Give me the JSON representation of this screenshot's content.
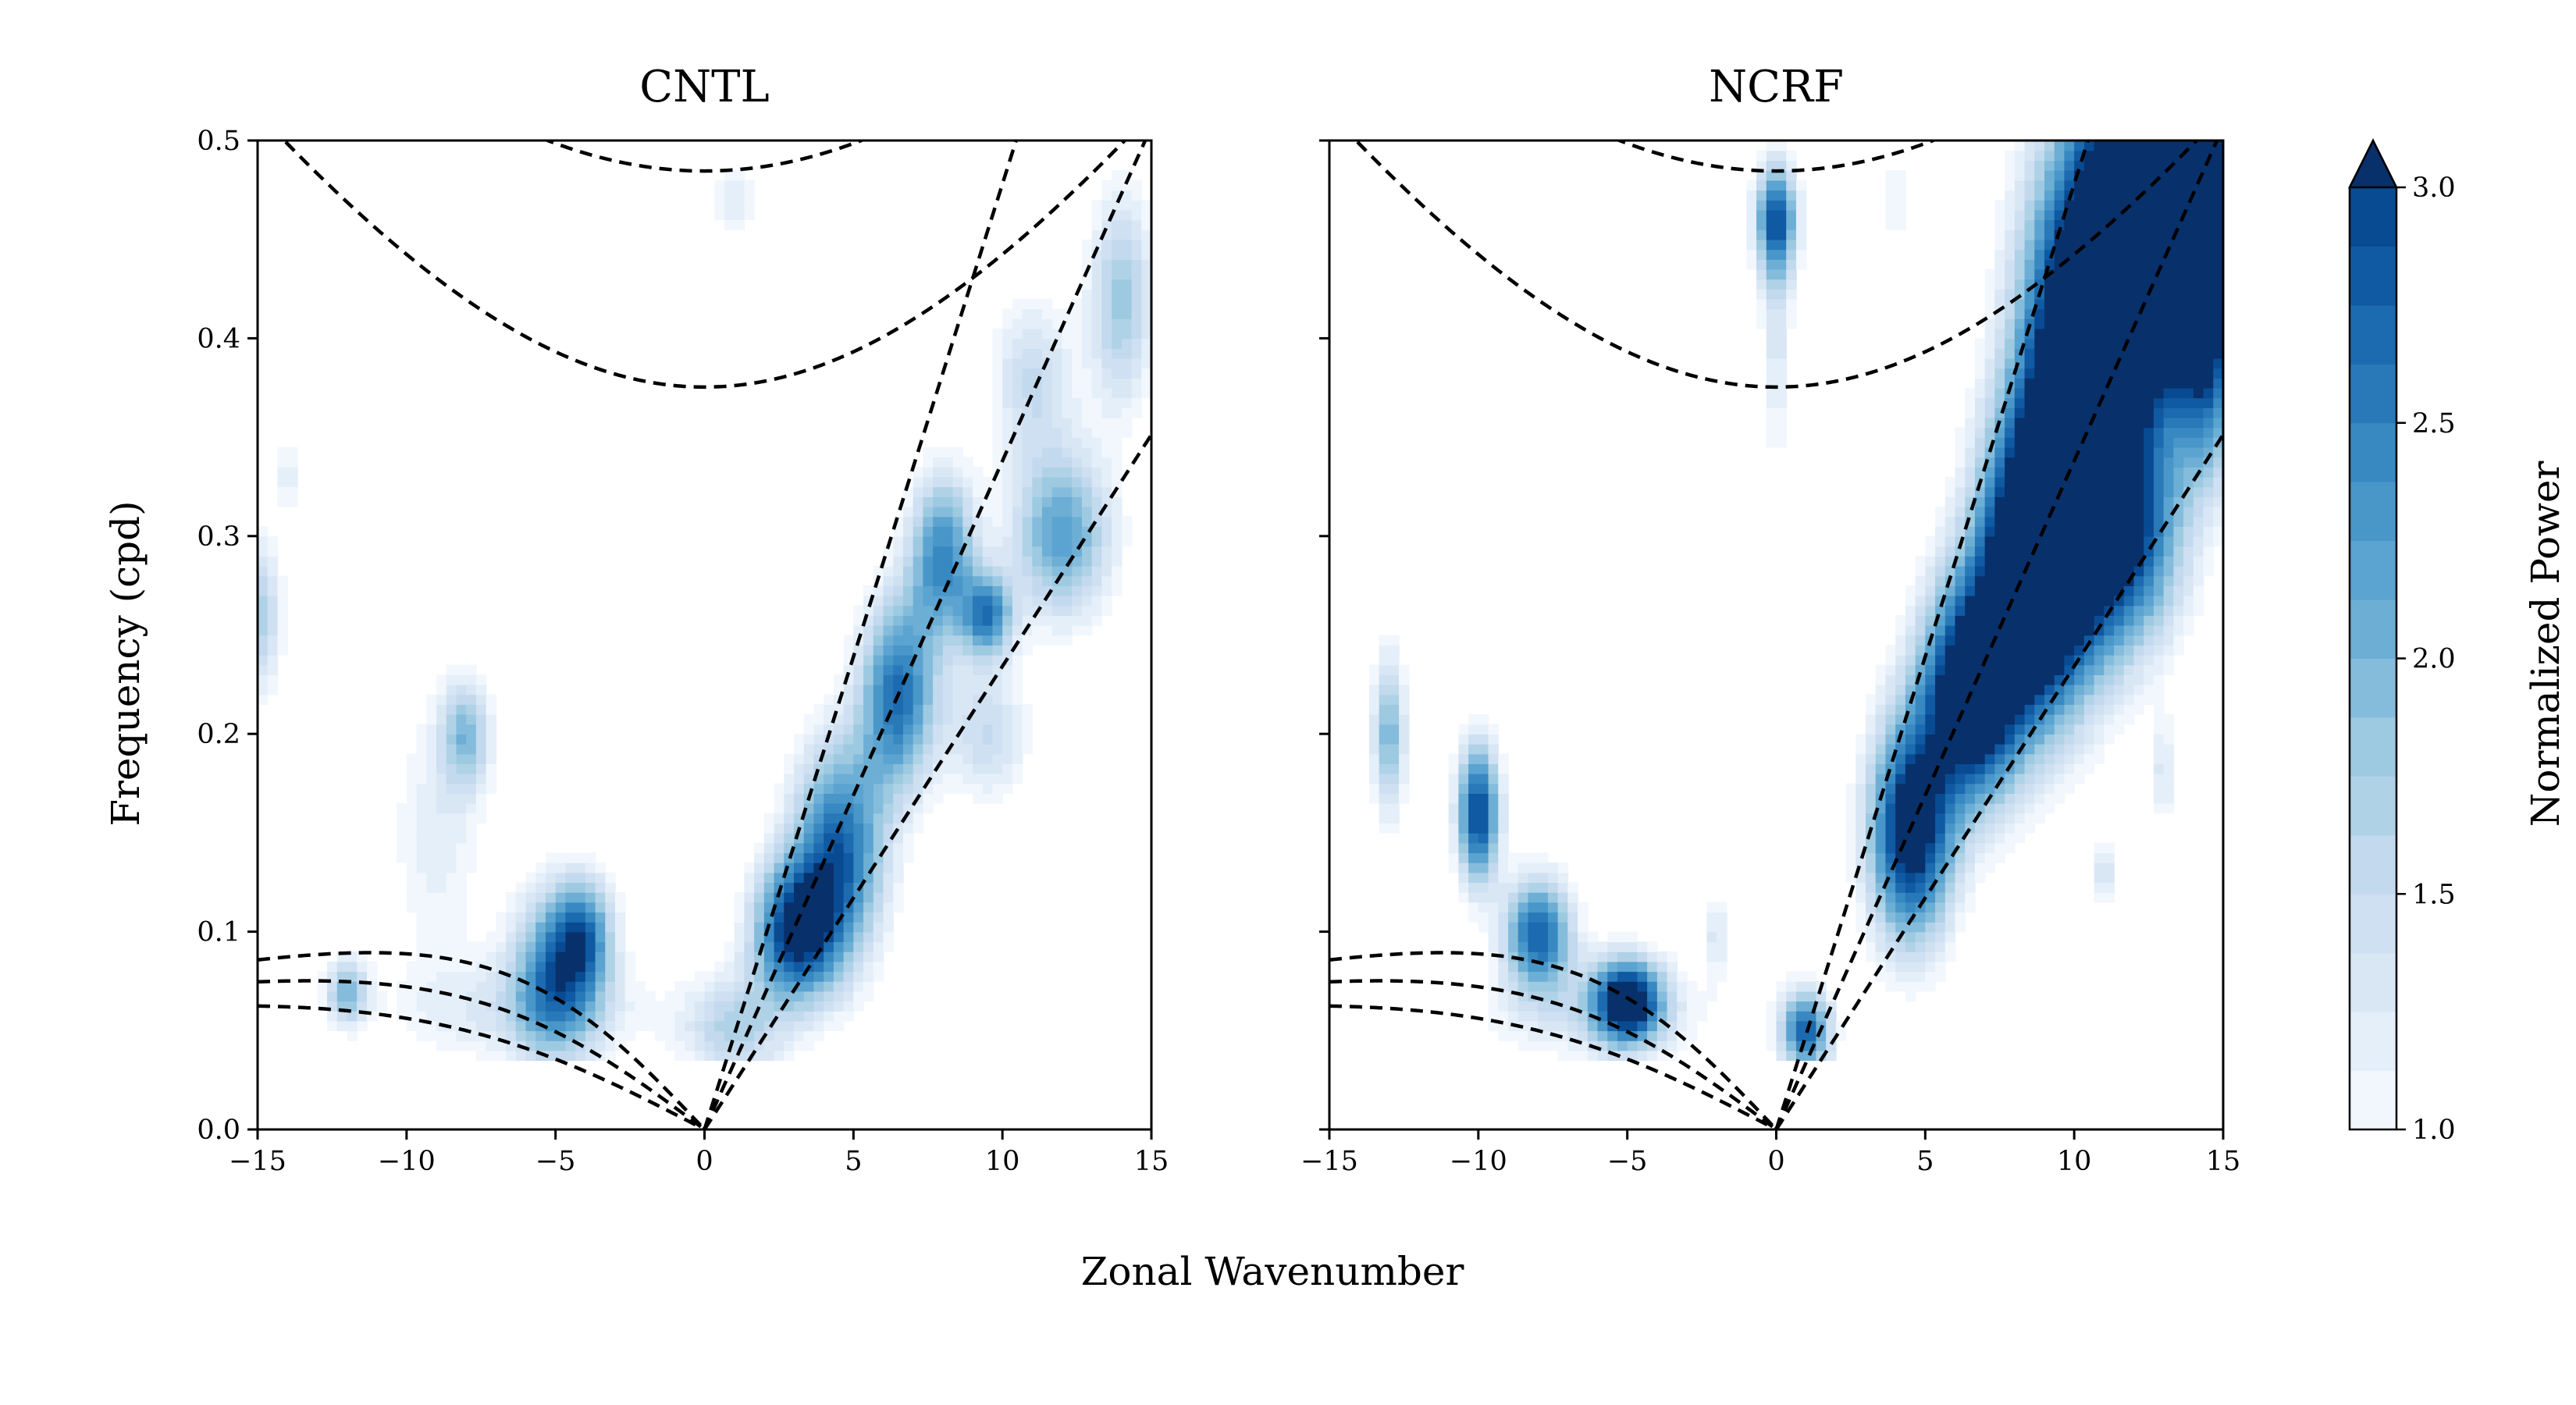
{
  "figure": {
    "xlabel": "Zonal Wavenumber",
    "ylabel": "Frequency (cpd)"
  },
  "colorbar": {
    "label": "Normalized Power",
    "min": 1.0,
    "max": 3.0,
    "levels": [
      1.0,
      1.125,
      1.25,
      1.375,
      1.5,
      1.625,
      1.75,
      1.875,
      2.0,
      2.125,
      2.25,
      2.375,
      2.5,
      2.625,
      2.75,
      2.875,
      3.0
    ],
    "ticks": [
      "1.0",
      "1.5",
      "2.0",
      "2.5",
      "3.0"
    ],
    "extend": "max",
    "colors": [
      "#f1f7fd",
      "#e5eff9",
      "#d9e7f5",
      "#cee0f2",
      "#c2d9ee",
      "#b0d2e7",
      "#9dcae1",
      "#85bcdc",
      "#6daed5",
      "#5ba3d0",
      "#4997c9",
      "#3888c1",
      "#2979b9",
      "#1c6aaf",
      "#0f5aa3",
      "#084b93",
      "#08306b"
    ]
  },
  "chart_data": [
    {
      "type": "contour",
      "title": "CNTL",
      "xlim": [
        -15,
        15
      ],
      "ylim": [
        0.0,
        0.5
      ],
      "xticks": [
        -15,
        -10,
        -5,
        0,
        5,
        10,
        15
      ],
      "yticks": [
        0.0,
        0.1,
        0.2,
        0.3,
        0.4,
        0.5
      ],
      "xtick_labels": [
        "−15",
        "−10",
        "−5",
        "0",
        "5",
        "10",
        "15"
      ],
      "ytick_labels": [
        "0.0",
        "0.1",
        "0.2",
        "0.3",
        "0.4",
        "0.5"
      ],
      "blobs": [
        {
          "k": 3,
          "f": 0.1,
          "sk": 1.0,
          "sf": 0.025,
          "a": 2.2
        },
        {
          "k": 4.5,
          "f": 0.14,
          "sk": 1.1,
          "sf": 0.04,
          "a": 2.0
        },
        {
          "k": 6.5,
          "f": 0.22,
          "sk": 0.9,
          "sf": 0.035,
          "a": 1.9
        },
        {
          "k": 8,
          "f": 0.29,
          "sk": 0.8,
          "sf": 0.03,
          "a": 1.7
        },
        {
          "k": 9.5,
          "f": 0.26,
          "sk": 0.6,
          "sf": 0.015,
          "a": 1.7
        },
        {
          "k": 12,
          "f": 0.3,
          "sk": 1.2,
          "sf": 0.03,
          "a": 1.5
        },
        {
          "k": 14,
          "f": 0.42,
          "sk": 0.8,
          "sf": 0.04,
          "a": 1.1
        },
        {
          "k": 9.5,
          "f": 0.2,
          "sk": 1.0,
          "sf": 0.025,
          "a": 0.8
        },
        {
          "k": 1,
          "f": 0.05,
          "sk": 1.2,
          "sf": 0.02,
          "a": 0.9
        },
        {
          "k": -5,
          "f": 0.08,
          "sk": 1.0,
          "sf": 0.03,
          "a": 1.7
        },
        {
          "k": -4,
          "f": 0.1,
          "sk": 0.7,
          "sf": 0.02,
          "a": 1.3
        },
        {
          "k": -12,
          "f": 0.07,
          "sk": 0.5,
          "sf": 0.012,
          "a": 1.2
        },
        {
          "k": -8,
          "f": 0.2,
          "sk": 0.6,
          "sf": 0.02,
          "a": 1.1
        },
        {
          "k": -9,
          "f": 0.15,
          "sk": 1.2,
          "sf": 0.05,
          "a": 0.5
        },
        {
          "k": -15,
          "f": 0.26,
          "sk": 0.6,
          "sf": 0.03,
          "a": 1.0
        },
        {
          "k": -6,
          "f": 0.06,
          "sk": 3.5,
          "sf": 0.02,
          "a": 0.55
        },
        {
          "k": 1,
          "f": 0.47,
          "sk": 0.6,
          "sf": 0.012,
          "a": 0.55
        },
        {
          "k": -14,
          "f": 0.33,
          "sk": 0.3,
          "sf": 0.015,
          "a": 0.5
        },
        {
          "k": 11,
          "f": 0.38,
          "sk": 1.0,
          "sf": 0.03,
          "a": 0.8
        }
      ],
      "fmin": 0.035
    },
    {
      "type": "contour",
      "title": "NCRF",
      "xlim": [
        -15,
        15
      ],
      "ylim": [
        0.0,
        0.5
      ],
      "xticks": [
        -15,
        -10,
        -5,
        0,
        5,
        10,
        15
      ],
      "yticks": [
        0.0,
        0.1,
        0.2,
        0.3,
        0.4,
        0.5
      ],
      "xtick_labels": [
        "−15",
        "−10",
        "−5",
        "0",
        "5",
        "10",
        "15"
      ],
      "ytick_labels": [
        "",
        "",
        "",
        "",
        "",
        ""
      ],
      "blobs": [
        {
          "k": 4.5,
          "f": 0.15,
          "sk": 1.0,
          "sf": 0.04,
          "a": 2.6
        },
        {
          "k": 6.5,
          "f": 0.22,
          "sk": 1.2,
          "sf": 0.04,
          "a": 2.8
        },
        {
          "k": 8.5,
          "f": 0.28,
          "sk": 1.3,
          "sf": 0.05,
          "a": 3.0
        },
        {
          "k": 10,
          "f": 0.35,
          "sk": 1.4,
          "sf": 0.07,
          "a": 3.2
        },
        {
          "k": 12,
          "f": 0.45,
          "sk": 1.8,
          "sf": 0.06,
          "a": 3.4
        },
        {
          "k": 14,
          "f": 0.48,
          "sk": 1.5,
          "sf": 0.05,
          "a": 3.2
        },
        {
          "k": 12,
          "f": 0.3,
          "sk": 1.3,
          "sf": 0.04,
          "a": 1.6
        },
        {
          "k": 14.5,
          "f": 0.38,
          "sk": 0.8,
          "sf": 0.04,
          "a": 1.3
        },
        {
          "k": 1,
          "f": 0.05,
          "sk": 0.6,
          "sf": 0.015,
          "a": 2.0
        },
        {
          "k": -5,
          "f": 0.065,
          "sk": 0.8,
          "sf": 0.015,
          "a": 2.5
        },
        {
          "k": -8,
          "f": 0.1,
          "sk": 0.8,
          "sf": 0.02,
          "a": 2.0
        },
        {
          "k": -10,
          "f": 0.16,
          "sk": 0.5,
          "sf": 0.025,
          "a": 2.3
        },
        {
          "k": -13,
          "f": 0.2,
          "sk": 0.4,
          "sf": 0.03,
          "a": 1.3
        },
        {
          "k": -6,
          "f": 0.06,
          "sk": 3.0,
          "sf": 0.02,
          "a": 0.6
        },
        {
          "k": 0,
          "f": 0.46,
          "sk": 0.5,
          "sf": 0.02,
          "a": 2.0
        },
        {
          "k": 0,
          "f": 0.4,
          "sk": 0.4,
          "sf": 0.05,
          "a": 0.6
        },
        {
          "k": -2,
          "f": 0.1,
          "sk": 0.3,
          "sf": 0.015,
          "a": 0.6
        },
        {
          "k": 11,
          "f": 0.13,
          "sk": 0.3,
          "sf": 0.012,
          "a": 0.7
        },
        {
          "k": 13,
          "f": 0.18,
          "sk": 0.3,
          "sf": 0.02,
          "a": 0.6
        },
        {
          "k": 4,
          "f": 0.47,
          "sk": 0.3,
          "sf": 0.03,
          "a": 0.4
        }
      ],
      "fmin": 0.035
    }
  ]
}
